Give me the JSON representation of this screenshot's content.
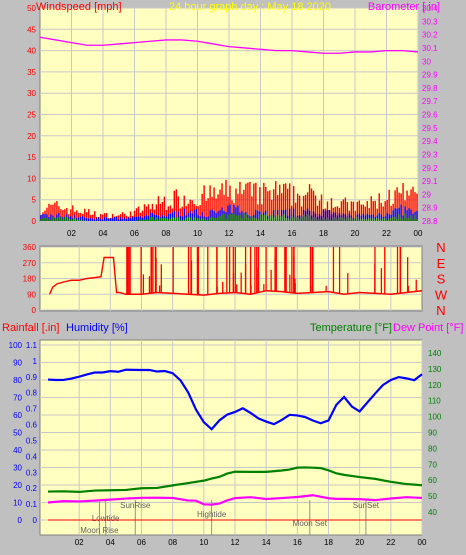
{
  "colors": {
    "plot_bg": "#ffffc0",
    "page_bg": "#c0c0c0",
    "grid": "#c8c8c8",
    "wind": "#ff0000",
    "gust_fill": "#ff0000",
    "wind_avg": "#0000ff",
    "wind_low": "#008000",
    "baro": "#ff00ff",
    "dir": "#ff0000",
    "humidity": "#0000ff",
    "temperature": "#008000",
    "dewpoint": "#ff00ff",
    "title": "#ffff00",
    "event_text": "#606060",
    "label_red": "#ff0000",
    "label_blue": "#0000ff",
    "label_green": "#008000",
    "label_magenta": "#ff00ff"
  },
  "chart_data": [
    {
      "type": "area",
      "id": "wind-baro",
      "title": "24 hour graph day : May 18 2020",
      "ylabel_left": "Windspeed [mph]",
      "ylabel_right": "Barometer [ in]",
      "ylim_left": [
        0,
        50
      ],
      "yticks_left": [
        "0",
        "5",
        "10",
        "15",
        "20",
        "25",
        "30",
        "35",
        "40",
        "45",
        "50"
      ],
      "ylim_right": [
        28.8,
        30.4
      ],
      "yticks_right": [
        "28.8",
        "28.9",
        "29",
        "29.1",
        "29.2",
        "29.3",
        "29.4",
        "29.5",
        "29.6",
        "29.7",
        "29.8",
        "29.9",
        "30",
        "30.1",
        "30.2",
        "30.3",
        "30.4"
      ],
      "xticks": [
        "02",
        "04",
        "06",
        "08",
        "10",
        "12",
        "14",
        "16",
        "18",
        "20",
        "22",
        "00"
      ],
      "x_hours": [
        0,
        2,
        4,
        6,
        8,
        10,
        12,
        14,
        16,
        18,
        20,
        22,
        24
      ],
      "barometer_hours": [
        0,
        1,
        2,
        3,
        4,
        5,
        6,
        7,
        8,
        9,
        10,
        11,
        12,
        13,
        14,
        15,
        16,
        17,
        18,
        19,
        20,
        21,
        22,
        23,
        24
      ],
      "barometer": [
        30.18,
        30.16,
        30.14,
        30.12,
        30.12,
        30.13,
        30.14,
        30.15,
        30.16,
        30.16,
        30.15,
        30.13,
        30.11,
        30.1,
        30.09,
        30.08,
        30.08,
        30.07,
        30.06,
        30.06,
        30.07,
        30.07,
        30.08,
        30.08,
        30.07
      ],
      "gust_hours": [
        0,
        1,
        2,
        3,
        4,
        5,
        6,
        7,
        8,
        9,
        10,
        11,
        12,
        13,
        14,
        15,
        16,
        17,
        18,
        19,
        20,
        21,
        22,
        23,
        24
      ],
      "gust_max": [
        4,
        5,
        4,
        3,
        2,
        2,
        3,
        5,
        7,
        8,
        8,
        9,
        10,
        10,
        9,
        10,
        9,
        9,
        8,
        6,
        5,
        6,
        8,
        9,
        8
      ],
      "avg_max": [
        2,
        2,
        2,
        1,
        1,
        1,
        1,
        2,
        2,
        3,
        3,
        3,
        4,
        4,
        3,
        3,
        3,
        3,
        3,
        2,
        2,
        2,
        3,
        4,
        3
      ],
      "low_max": [
        1,
        1,
        1,
        0,
        0,
        0,
        0,
        1,
        1,
        1,
        1,
        1,
        2,
        2,
        2,
        2,
        2,
        2,
        1,
        1,
        1,
        1,
        1,
        2,
        2
      ],
      "series": []
    },
    {
      "type": "line",
      "id": "direction",
      "ylim": [
        0,
        360
      ],
      "yticks": [
        "0",
        "90",
        "180",
        "270",
        "360"
      ],
      "compass": [
        "N",
        "W",
        "S",
        "E",
        "N"
      ],
      "xticks": [],
      "direction_hours": [
        0.1,
        0.3,
        0.6,
        1,
        1.5,
        2,
        2.5,
        3,
        3.4,
        3.6,
        4,
        4.2,
        4.4,
        4.6,
        5,
        6,
        7,
        8,
        9,
        10,
        11,
        12,
        13,
        14,
        15,
        16,
        17,
        18,
        19,
        20,
        21,
        22,
        23,
        24
      ],
      "direction": [
        90,
        130,
        150,
        160,
        170,
        170,
        180,
        185,
        190,
        300,
        300,
        300,
        100,
        100,
        90,
        90,
        100,
        95,
        90,
        85,
        95,
        100,
        90,
        110,
        105,
        95,
        100,
        105,
        90,
        100,
        95,
        90,
        100,
        110
      ],
      "series": []
    },
    {
      "type": "line",
      "id": "temp-hum-rain",
      "ylabel_rain": "Rainfall [.in]",
      "ylabel_humidity": "Humidity [%]",
      "ylabel_temperature": "Temperature [°F]",
      "ylabel_dewpoint": "Dew Point [°F]",
      "ylim_rain": [
        0,
        1.1
      ],
      "yticks_rain": [
        "0",
        "0.1",
        "0.2",
        "0.3",
        "0.4",
        "0.5",
        "0.6",
        "0.7",
        "0.8",
        "0.9",
        "1",
        "1.1"
      ],
      "ylim_humidity": [
        0,
        100
      ],
      "yticks_humidity": [
        "0",
        "10",
        "20",
        "30",
        "40",
        "50",
        "60",
        "70",
        "80",
        "90",
        "100"
      ],
      "ylim_temp": [
        35,
        145
      ],
      "yticks_temp": [
        "40",
        "50",
        "60",
        "70",
        "80",
        "90",
        "100",
        "110",
        "120",
        "130",
        "140"
      ],
      "xticks": [
        "02",
        "04",
        "06",
        "08",
        "10",
        "12",
        "14",
        "16",
        "18",
        "20",
        "22",
        "00"
      ],
      "series": [
        {
          "name": "Humidity [%]",
          "axis": "humidity",
          "x": [
            0,
            0.5,
            1,
            1.5,
            2,
            2.5,
            3,
            3.5,
            4,
            4.5,
            5,
            5.5,
            6,
            6.5,
            7,
            7.5,
            8,
            8.5,
            9,
            9.5,
            10,
            10.5,
            11,
            11.5,
            12,
            12.5,
            13,
            13.5,
            14,
            14.5,
            15,
            15.5,
            16,
            16.5,
            17,
            17.5,
            18,
            18.5,
            19,
            19.5,
            20,
            20.5,
            21,
            21.5,
            22,
            22.5,
            23,
            23.5,
            24
          ],
          "values": [
            80,
            80,
            80,
            81,
            82,
            83,
            84,
            84,
            85,
            85,
            86,
            86,
            86,
            86,
            85,
            85,
            84,
            80,
            73,
            63,
            56,
            52,
            57,
            60,
            62,
            64,
            61,
            58,
            56,
            55,
            57,
            60,
            60,
            59,
            57,
            55,
            57,
            66,
            70,
            65,
            62,
            67,
            72,
            77,
            80,
            82,
            81,
            80,
            83
          ]
        },
        {
          "name": "Temperature [°F]",
          "axis": "temp",
          "x": [
            0,
            1,
            2,
            3,
            4,
            5,
            6,
            7,
            8,
            9,
            10,
            10.5,
            11,
            11.5,
            12,
            13,
            14,
            15,
            15.5,
            16,
            16.5,
            17,
            17.5,
            18,
            18.5,
            19,
            20,
            21,
            22,
            23,
            24
          ],
          "values": [
            52.8,
            52.8,
            53,
            53.2,
            53.5,
            54,
            54.8,
            55.5,
            56.5,
            58,
            60,
            61,
            62.5,
            64,
            65,
            65.5,
            65.2,
            66,
            67,
            68,
            68.2,
            68,
            67.5,
            66.5,
            64.5,
            63,
            62,
            60.5,
            59,
            57.5,
            57
          ]
        },
        {
          "name": "Dew Point [°F]",
          "axis": "temp",
          "x": [
            0,
            1,
            2,
            3,
            4,
            5,
            6,
            7,
            8,
            9,
            9.5,
            10,
            10.5,
            11,
            11.5,
            12,
            13,
            14,
            15,
            16,
            17,
            18,
            18.5,
            19,
            20,
            21,
            22,
            23,
            24
          ],
          "values": [
            46,
            46.5,
            47,
            47.5,
            48,
            48.5,
            49,
            49,
            49,
            47.5,
            47,
            45,
            45,
            45.5,
            47.5,
            49,
            49.5,
            48.5,
            48.5,
            49.5,
            50.5,
            49,
            48,
            48.5,
            48,
            47.5,
            48.5,
            49,
            49
          ]
        },
        {
          "name": "Rainfall [.in]",
          "axis": "rain",
          "x": [
            0,
            24
          ],
          "values": [
            0,
            0
          ]
        }
      ],
      "events": [
        {
          "label": "SunRise",
          "hour": 5.6
        },
        {
          "label": "Lowtide",
          "hour": 3.7
        },
        {
          "label": "Moon Rise",
          "hour": 3.3
        },
        {
          "label": "Hightide",
          "hour": 10.5
        },
        {
          "label": "Moon Set",
          "hour": 16.8
        },
        {
          "label": "SunSet",
          "hour": 20.4
        }
      ]
    }
  ]
}
